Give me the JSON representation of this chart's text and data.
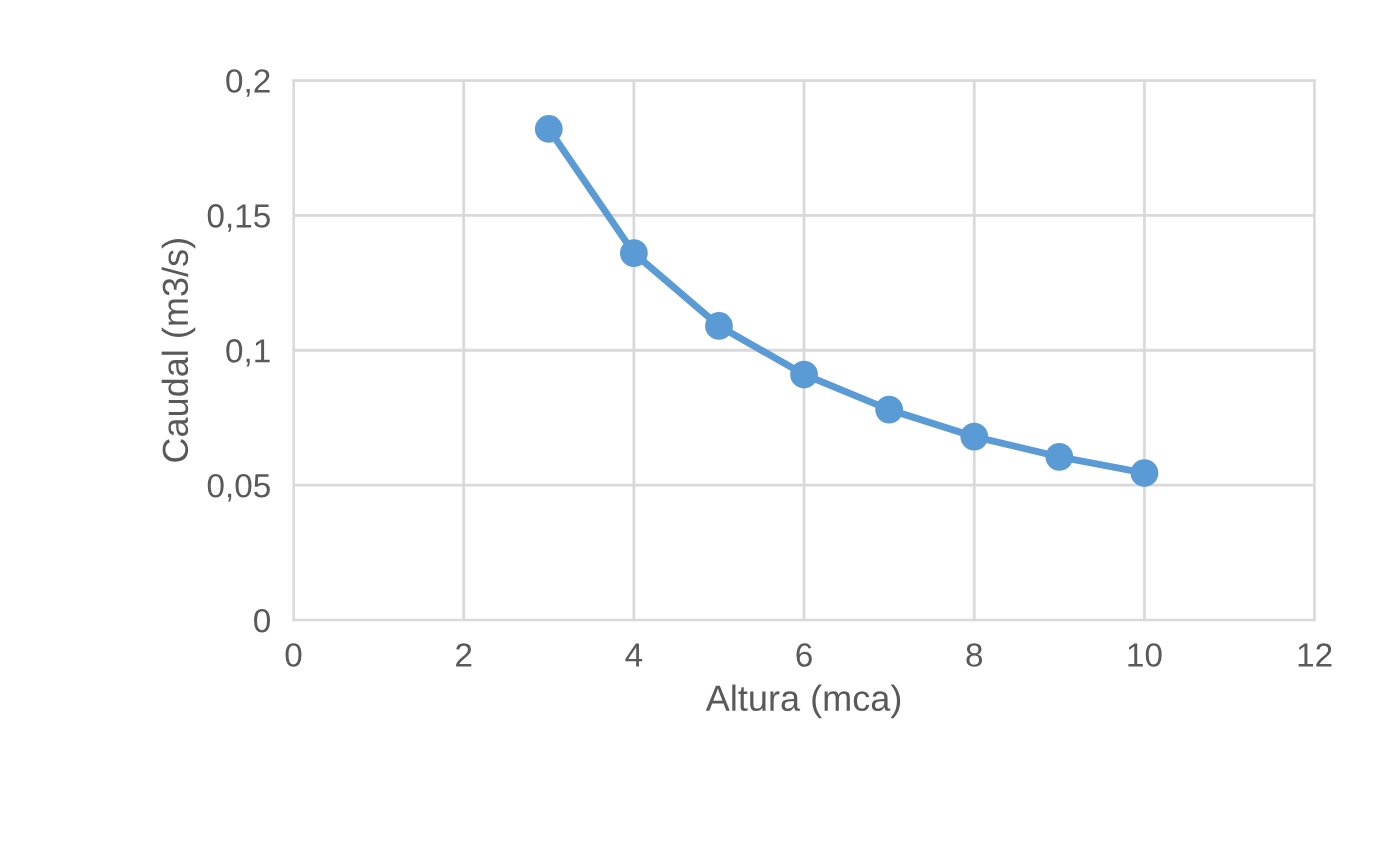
{
  "chart_data": {
    "type": "line",
    "xlabel": "Altura (mca)",
    "ylabel": "Caudal (m3/s)",
    "x": [
      3,
      4,
      5,
      6,
      7,
      8,
      9,
      10
    ],
    "series": [
      {
        "color": "#5b9bd5",
        "values": [
          0.182,
          0.136,
          0.109,
          0.091,
          0.078,
          0.068,
          0.0605,
          0.0545
        ]
      }
    ],
    "xlim": [
      0,
      12
    ],
    "xticks": [
      0,
      2,
      4,
      6,
      8,
      10,
      12
    ],
    "ylim": [
      0,
      0.2
    ],
    "yticks": [
      0,
      {
        "value": 0.05,
        "label": "0,05"
      },
      {
        "value": 0.1,
        "label": "0,1"
      },
      {
        "value": 0.15,
        "label": "0,15"
      },
      {
        "value": 0.2,
        "label": "0,2"
      }
    ],
    "grid": true,
    "marker": "circle",
    "line_style": "solid"
  }
}
